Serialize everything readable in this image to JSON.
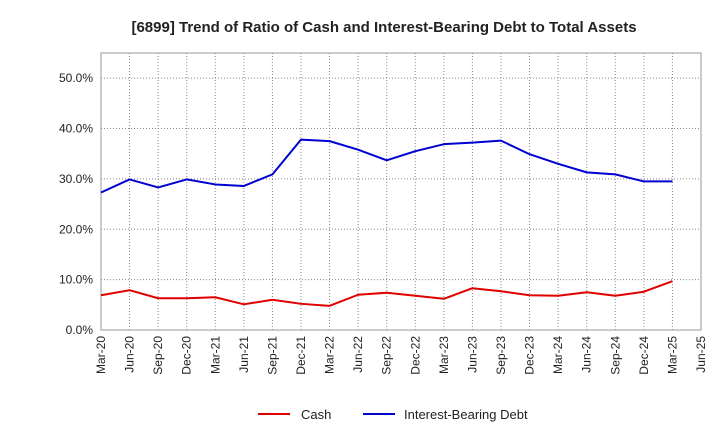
{
  "chart_data": {
    "type": "line",
    "title": "[6899]  Trend of Ratio of Cash and Interest-Bearing Debt to Total Assets",
    "xlabel": "",
    "ylabel": "",
    "categories": [
      "Mar-20",
      "Jun-20",
      "Sep-20",
      "Dec-20",
      "Mar-21",
      "Jun-21",
      "Sep-21",
      "Dec-21",
      "Mar-22",
      "Jun-22",
      "Sep-22",
      "Dec-22",
      "Mar-23",
      "Jun-23",
      "Sep-23",
      "Dec-23",
      "Mar-24",
      "Jun-24",
      "Sep-24",
      "Dec-24",
      "Mar-25",
      "Jun-25"
    ],
    "ylim": [
      0,
      55
    ],
    "yticks": [
      0,
      10,
      20,
      30,
      40,
      50
    ],
    "ytick_labels": [
      "0.0%",
      "10.0%",
      "20.0%",
      "30.0%",
      "40.0%",
      "50.0%"
    ],
    "grid": true,
    "legend_position": "bottom",
    "series": [
      {
        "name": "Cash",
        "color": "#e00000",
        "values": [
          6.9,
          7.9,
          6.3,
          6.3,
          6.5,
          5.1,
          6.0,
          5.2,
          4.8,
          7.0,
          7.4,
          6.8,
          6.2,
          8.3,
          7.7,
          6.9,
          6.8,
          7.5,
          6.8,
          7.6,
          9.7,
          null
        ]
      },
      {
        "name": "Interest-Bearing Debt",
        "color": "#0000d0",
        "values": [
          27.3,
          29.9,
          28.3,
          29.9,
          28.9,
          28.6,
          30.9,
          37.8,
          37.5,
          35.8,
          33.7,
          35.5,
          36.9,
          37.2,
          37.6,
          34.9,
          33.0,
          31.3,
          30.9,
          29.5,
          29.5,
          null
        ]
      }
    ]
  }
}
